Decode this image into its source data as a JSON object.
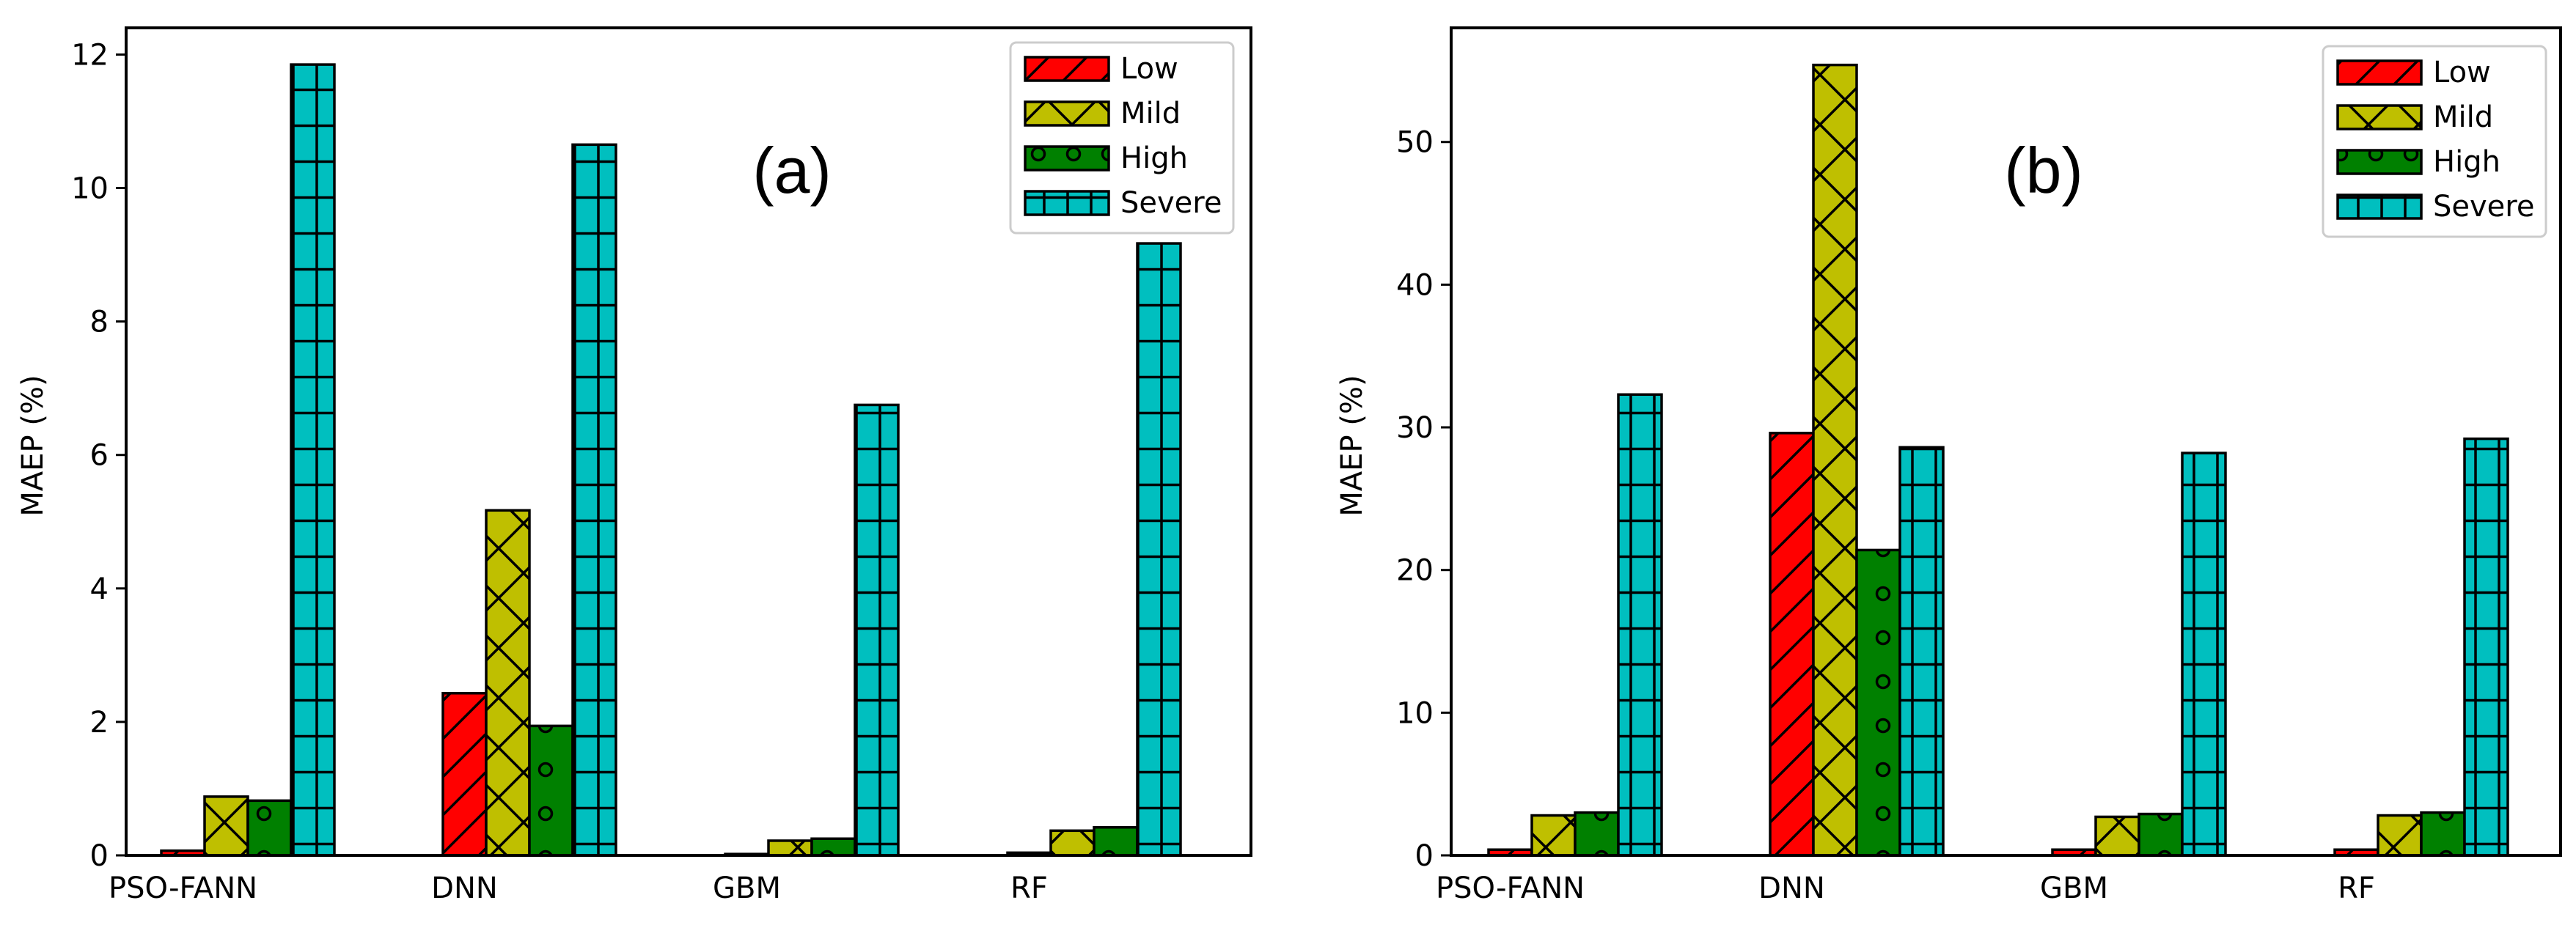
{
  "colors": {
    "Low": "#ff0000",
    "Mild": "#bfbf00",
    "High": "#008000",
    "Severe": "#00bfbf"
  },
  "chart_data": [
    {
      "type": "bar",
      "panel_label": "(a)",
      "categories": [
        "PSO-FANN",
        "DNN",
        "GBM",
        "RF"
      ],
      "series": [
        {
          "name": "Low",
          "values": [
            0.07,
            2.43,
            0.02,
            0.04
          ]
        },
        {
          "name": "Mild",
          "values": [
            0.88,
            5.17,
            0.22,
            0.37
          ]
        },
        {
          "name": "High",
          "values": [
            0.82,
            1.94,
            0.25,
            0.42
          ]
        },
        {
          "name": "Severe",
          "values": [
            11.85,
            10.65,
            6.75,
            9.17
          ]
        }
      ],
      "xlabel": "",
      "ylabel": "MAEP (%)",
      "ylim": [
        0,
        12.4
      ],
      "yticks": [
        0,
        2,
        4,
        6,
        8,
        10,
        12
      ],
      "legend": "top-right"
    },
    {
      "type": "bar",
      "panel_label": "(b)",
      "categories": [
        "PSO-FANN",
        "DNN",
        "GBM",
        "RF"
      ],
      "series": [
        {
          "name": "Low",
          "values": [
            0.4,
            29.6,
            0.4,
            0.4
          ]
        },
        {
          "name": "Mild",
          "values": [
            2.8,
            55.4,
            2.7,
            2.8
          ]
        },
        {
          "name": "High",
          "values": [
            3.0,
            21.4,
            2.9,
            3.0
          ]
        },
        {
          "name": "Severe",
          "values": [
            32.3,
            28.6,
            28.2,
            29.2
          ]
        }
      ],
      "xlabel": "",
      "ylabel": "MAEP (%)",
      "ylim": [
        0,
        58
      ],
      "yticks": [
        0,
        10,
        20,
        30,
        40,
        50
      ],
      "legend": "top-right"
    }
  ]
}
